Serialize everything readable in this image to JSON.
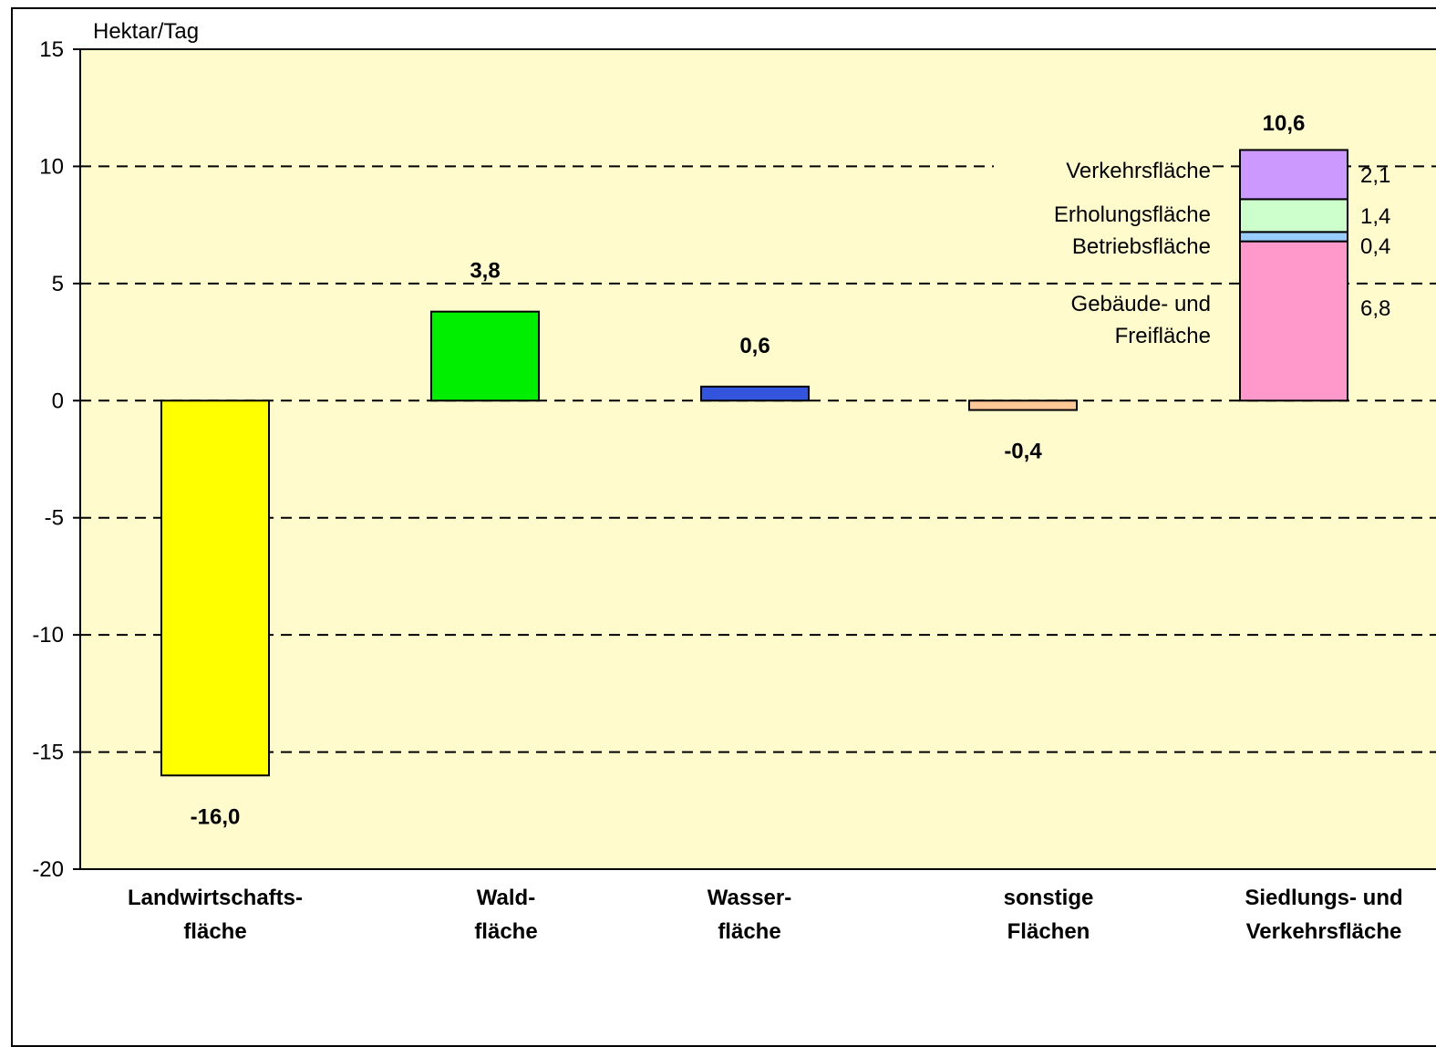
{
  "chart_data": {
    "type": "bar",
    "ylabel": "Hektar/Tag",
    "ylim": [
      -20,
      15
    ],
    "yticks": [
      15,
      10,
      5,
      0,
      -5,
      -10,
      -15,
      -20
    ],
    "grid": "horizontal dashed",
    "background_color": "#fffbcc",
    "categories": [
      [
        "Landwirtschafts-",
        "fläche"
      ],
      [
        "Wald-",
        "fläche"
      ],
      [
        "Wasser-",
        "fläche"
      ],
      [
        "sonstige",
        "Flächen"
      ],
      [
        "Siedlungs- und",
        "Verkehrsfläche"
      ]
    ],
    "values": [
      -16.0,
      3.8,
      0.6,
      -0.4,
      10.6
    ],
    "value_labels": [
      "-16,0",
      "3,8",
      "0,6",
      "-0,4",
      "10,6"
    ],
    "colors": [
      "#ffff00",
      "#00ee00",
      "#3355dd",
      "#ffc896",
      null
    ],
    "stacked_last": [
      {
        "name": [
          "Gebäude- und",
          "Freifläche"
        ],
        "value": 6.8,
        "label": "6,8",
        "color": "#ff99cc"
      },
      {
        "name": [
          "Betriebsfläche"
        ],
        "value": 0.4,
        "label": "0,4",
        "color": "#99ccff"
      },
      {
        "name": [
          "Erholungsfläche"
        ],
        "value": 1.4,
        "label": "1,4",
        "color": "#ccffcc"
      },
      {
        "name": [
          "Verkehrsfläche"
        ],
        "value": 2.1,
        "label": "2,1",
        "color": "#cc99ff"
      }
    ]
  }
}
